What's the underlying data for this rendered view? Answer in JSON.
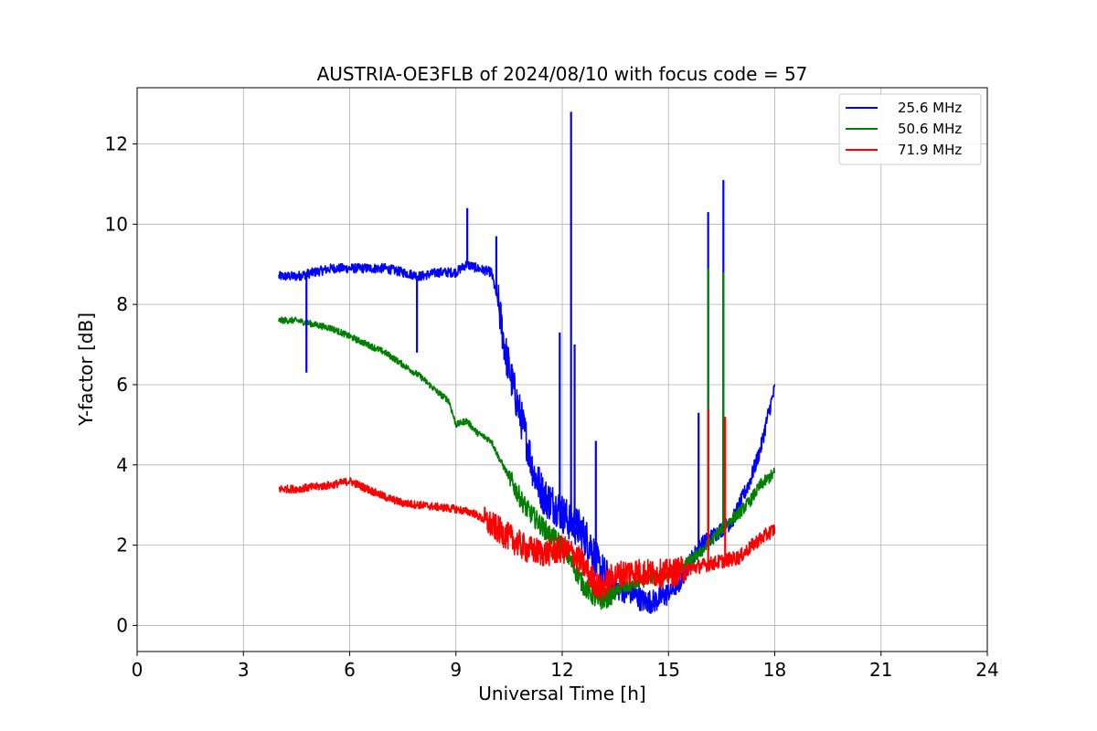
{
  "chart_data": {
    "type": "line",
    "title": "AUSTRIA-OE3FLB of 2024/08/10 with focus code = 57",
    "xlabel": "Universal Time [h]",
    "ylabel": "Y-factor [dB]",
    "xlim": [
      0,
      24
    ],
    "ylim": [
      -0.65,
      13.4
    ],
    "xticks": [
      0,
      3,
      6,
      9,
      12,
      15,
      18,
      21,
      24
    ],
    "yticks": [
      0,
      2,
      4,
      6,
      8,
      10,
      12
    ],
    "xtick_labels": [
      "0",
      "3",
      "6",
      "9",
      "12",
      "15",
      "18",
      "21",
      "24"
    ],
    "ytick_labels": [
      "0",
      "2",
      "4",
      "6",
      "8",
      "10",
      "12"
    ],
    "grid": true,
    "legend_position": "top-right",
    "series": [
      {
        "name": "25.6 MHz",
        "color": "#0000ff",
        "x": [
          4.0,
          4.5,
          5.0,
          5.5,
          6.0,
          6.5,
          7.0,
          7.5,
          8.0,
          8.5,
          9.0,
          9.3,
          9.6,
          10.0,
          10.2,
          10.4,
          10.6,
          10.8,
          11.0,
          11.2,
          11.5,
          11.8,
          12.0,
          12.2,
          12.5,
          12.8,
          13.0,
          13.3,
          13.6,
          14.0,
          14.3,
          14.6,
          15.0,
          15.3,
          15.6,
          15.9,
          16.2,
          16.5,
          16.8,
          17.0,
          17.3,
          17.6,
          17.8,
          18.0
        ],
        "y": [
          8.7,
          8.7,
          8.8,
          8.9,
          8.9,
          8.9,
          8.9,
          8.8,
          8.7,
          8.8,
          8.8,
          9.0,
          8.9,
          8.8,
          8.0,
          6.8,
          6.0,
          5.3,
          4.6,
          3.8,
          3.2,
          3.0,
          2.8,
          2.6,
          2.4,
          2.0,
          1.5,
          1.1,
          0.9,
          0.8,
          0.6,
          0.6,
          0.8,
          1.0,
          1.6,
          2.0,
          2.2,
          2.4,
          2.6,
          3.0,
          3.6,
          4.4,
          5.2,
          5.9
        ]
      },
      {
        "name": "50.6 MHz",
        "color": "#008000",
        "x": [
          4.0,
          4.5,
          5.0,
          5.5,
          6.0,
          6.5,
          7.0,
          7.5,
          8.0,
          8.5,
          8.8,
          9.0,
          9.3,
          9.6,
          10.0,
          10.2,
          10.5,
          10.8,
          11.0,
          11.3,
          11.6,
          12.0,
          12.3,
          12.6,
          13.0,
          13.3,
          13.6,
          14.0,
          14.3,
          14.6,
          15.0,
          15.3,
          15.6,
          16.0,
          16.3,
          16.6,
          17.0,
          17.3,
          17.6,
          18.0
        ],
        "y": [
          7.6,
          7.6,
          7.5,
          7.4,
          7.2,
          7.0,
          6.8,
          6.5,
          6.2,
          5.8,
          5.6,
          5.0,
          5.1,
          4.8,
          4.6,
          4.2,
          3.7,
          3.2,
          2.9,
          2.6,
          2.3,
          2.0,
          1.5,
          1.0,
          0.6,
          0.7,
          0.9,
          1.0,
          1.1,
          1.2,
          1.3,
          1.4,
          1.6,
          1.9,
          2.2,
          2.5,
          2.8,
          3.1,
          3.5,
          3.8
        ]
      },
      {
        "name": "71.9 MHz",
        "color": "#ff0000",
        "x": [
          4.0,
          4.5,
          5.0,
          5.5,
          6.0,
          6.5,
          7.0,
          7.5,
          8.0,
          8.5,
          9.0,
          9.5,
          10.0,
          10.5,
          11.0,
          11.5,
          12.0,
          12.3,
          12.6,
          12.9,
          13.1,
          13.4,
          13.7,
          14.0,
          14.5,
          15.0,
          15.5,
          16.0,
          16.5,
          17.0,
          17.5,
          18.0
        ],
        "y": [
          3.4,
          3.4,
          3.45,
          3.5,
          3.6,
          3.4,
          3.2,
          3.05,
          3.0,
          2.95,
          2.9,
          2.8,
          2.5,
          2.2,
          1.9,
          1.8,
          1.9,
          1.8,
          1.5,
          1.1,
          0.9,
          1.2,
          1.3,
          1.35,
          1.3,
          1.3,
          1.4,
          1.5,
          1.6,
          1.7,
          2.1,
          2.4
        ]
      }
    ],
    "spikes": [
      {
        "series": "25.6 MHz",
        "x": 4.78,
        "y": 6.3
      },
      {
        "series": "25.6 MHz",
        "x": 7.9,
        "y": 6.8
      },
      {
        "series": "25.6 MHz",
        "x": 9.32,
        "y": 10.4
      },
      {
        "series": "25.6 MHz",
        "x": 10.14,
        "y": 9.7
      },
      {
        "series": "25.6 MHz",
        "x": 11.93,
        "y": 7.3
      },
      {
        "series": "25.6 MHz",
        "x": 12.25,
        "y": 12.8
      },
      {
        "series": "25.6 MHz",
        "x": 12.35,
        "y": 7.0
      },
      {
        "series": "25.6 MHz",
        "x": 12.95,
        "y": 4.6
      },
      {
        "series": "25.6 MHz",
        "x": 15.85,
        "y": 5.3
      },
      {
        "series": "25.6 MHz",
        "x": 16.12,
        "y": 10.3
      },
      {
        "series": "25.6 MHz",
        "x": 16.55,
        "y": 11.1
      },
      {
        "series": "50.6 MHz",
        "x": 16.12,
        "y": 8.9
      },
      {
        "series": "50.6 MHz",
        "x": 16.55,
        "y": 8.8
      },
      {
        "series": "71.9 MHz",
        "x": 16.12,
        "y": 5.4
      },
      {
        "series": "71.9 MHz",
        "x": 16.6,
        "y": 5.2
      }
    ]
  }
}
